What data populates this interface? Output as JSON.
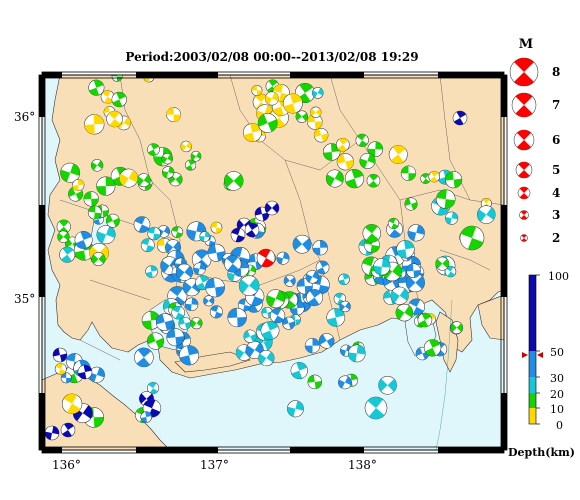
{
  "title": "Period:2003/02/08 00:00--2013/02/08 19:29",
  "map": {
    "lon_ticks": [
      "136°",
      "137°",
      "138°"
    ],
    "lat_ticks": [
      "36°",
      "35°"
    ],
    "colors": {
      "land": "#f9dfb8",
      "sea": "#dff6fb",
      "shallow": "#ffd800",
      "green": "#15d400",
      "cyan": "#16c8d6",
      "blue": "#1f8de3",
      "deep": "#0a0ab0",
      "main_event": "#ff0000"
    }
  },
  "magnitude_legend": {
    "title": "M",
    "labels": [
      "8",
      "7",
      "6",
      "5",
      "4",
      "3",
      "2"
    ]
  },
  "depth_legend": {
    "labels": [
      "100",
      "50",
      "30",
      "20",
      "10",
      "0"
    ],
    "unit": "Depth(km)"
  }
}
